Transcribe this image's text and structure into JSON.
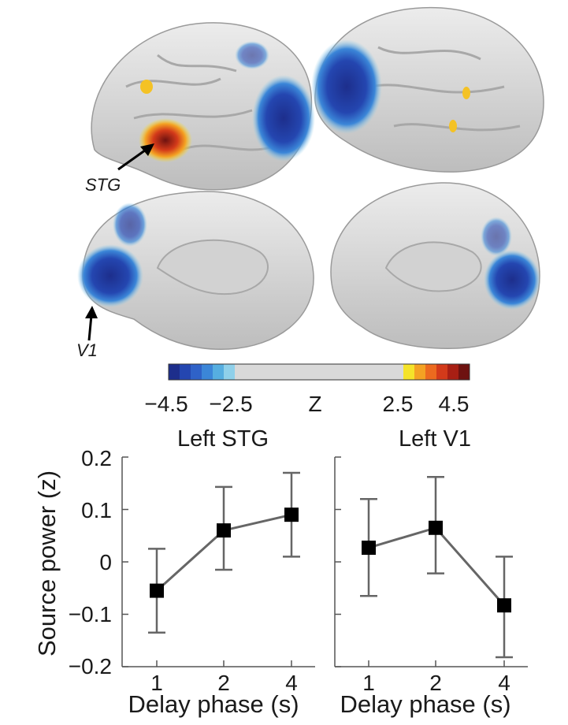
{
  "brain_labels": {
    "stg": "STG",
    "v1": "V1"
  },
  "colorbar": {
    "ticks": [
      "−4.5",
      "−2.5",
      "Z",
      "2.5",
      "4.5"
    ],
    "neg_colors": [
      "#1d2e8c",
      "#2446b0",
      "#2f62c8",
      "#3b86d8",
      "#56aee0",
      "#8fd0ea"
    ],
    "mid_color": "#d9d9d9",
    "pos_colors": [
      "#f5e32a",
      "#f4a223",
      "#ec6a1f",
      "#d33a1a",
      "#a81f14",
      "#6e1210"
    ]
  },
  "chart_data": [
    {
      "type": "line",
      "title": "Left STG",
      "xlabel": "Delay phase (s)",
      "ylabel": "Source power (z)",
      "categories": [
        "1",
        "2",
        "4"
      ],
      "values": [
        -0.055,
        0.06,
        0.09
      ],
      "err_low": [
        -0.135,
        -0.015,
        0.01
      ],
      "err_high": [
        0.025,
        0.143,
        0.17
      ],
      "ylim": [
        -0.2,
        0.2
      ],
      "yticks": [
        "0.2",
        "0.1",
        "0",
        "−0.1",
        "−0.2"
      ],
      "grid": false
    },
    {
      "type": "line",
      "title": "Left V1",
      "xlabel": "Delay phase (s)",
      "ylabel": "",
      "categories": [
        "1",
        "2",
        "4"
      ],
      "values": [
        0.027,
        0.065,
        -0.083
      ],
      "err_low": [
        -0.065,
        -0.022,
        -0.182
      ],
      "err_high": [
        0.12,
        0.162,
        0.01
      ],
      "ylim": [
        -0.2,
        0.2
      ],
      "grid": false
    }
  ]
}
